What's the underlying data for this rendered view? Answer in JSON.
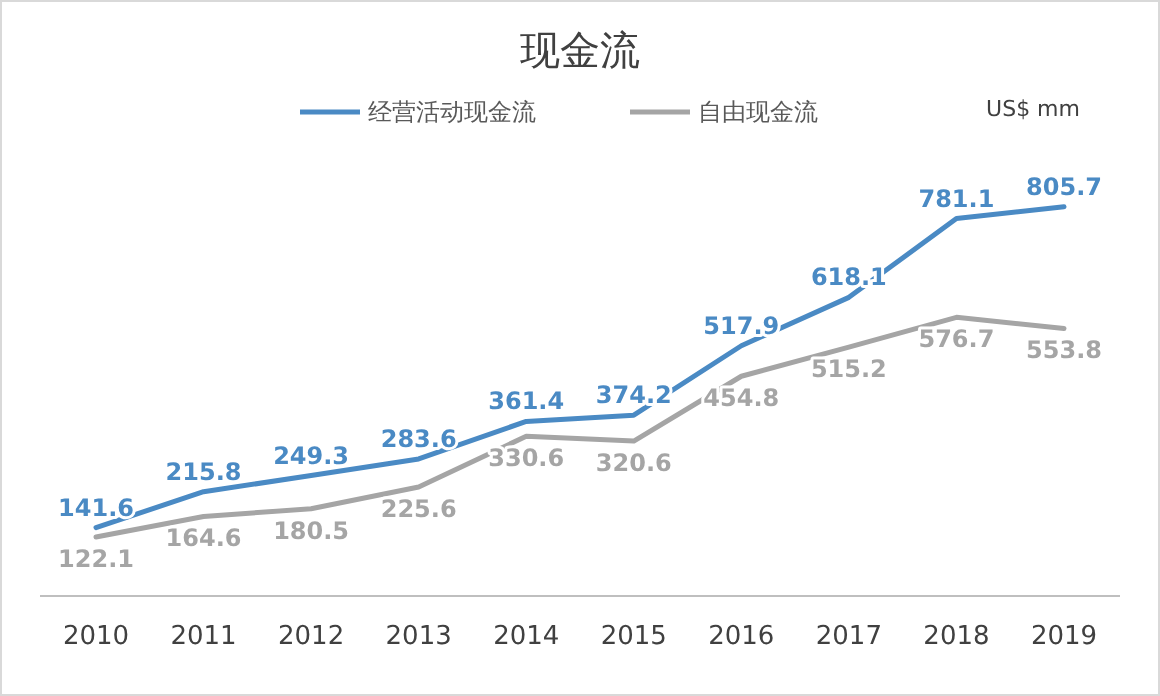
{
  "chart_data": {
    "type": "line",
    "title": "现金流",
    "annotations": [
      "US$ mm"
    ],
    "categories": [
      "2010",
      "2011",
      "2012",
      "2013",
      "2014",
      "2015",
      "2016",
      "2017",
      "2018",
      "2019"
    ],
    "series": [
      {
        "name": "经营活动现金流",
        "color": "#4a8ac4",
        "values": [
          141.6,
          215.8,
          249.3,
          283.6,
          361.4,
          374.2,
          517.9,
          618.1,
          781.1,
          805.7
        ]
      },
      {
        "name": "自由现金流",
        "color": "#a5a5a5",
        "values": [
          122.1,
          164.6,
          180.5,
          225.6,
          330.6,
          320.6,
          454.8,
          515.2,
          576.7,
          553.8
        ]
      }
    ],
    "data_labels": true,
    "legend": "top",
    "grid": false,
    "marker": "none",
    "line_style": "solid"
  }
}
